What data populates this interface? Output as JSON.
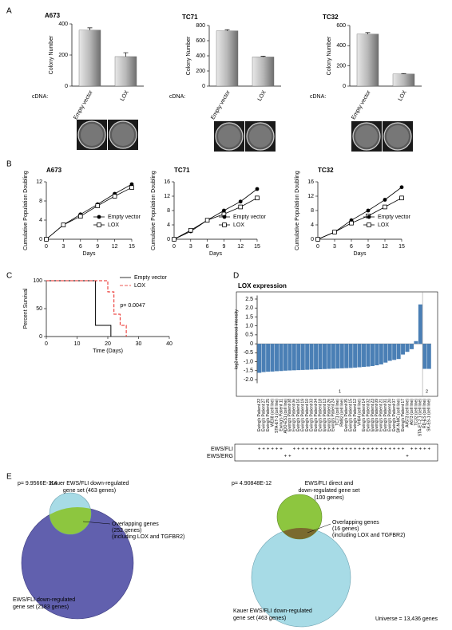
{
  "panel_labels": [
    "A",
    "B",
    "C",
    "D",
    "E"
  ],
  "chart_data": [
    {
      "type": "bar",
      "title": "A673",
      "categories": [
        "Empty vector",
        "LOX"
      ],
      "values": [
        360,
        190
      ],
      "errors": [
        15,
        25
      ],
      "ylabel": "Colony Number",
      "xlabel": "cDNA:",
      "ylim": [
        0,
        400
      ],
      "yticks": [
        0,
        200,
        400
      ],
      "color": "#a0a0a0"
    },
    {
      "type": "bar",
      "title": "TC71",
      "categories": [
        "Empty vector",
        "LOX"
      ],
      "values": [
        730,
        385
      ],
      "errors": [
        15,
        10
      ],
      "ylabel": "Colony Number",
      "xlabel": "cDNA:",
      "ylim": [
        0,
        800
      ],
      "yticks": [
        0,
        200,
        400,
        600,
        800
      ],
      "color": "#a0a0a0"
    },
    {
      "type": "bar",
      "title": "TC32",
      "categories": [
        "Empty vector",
        "LOX"
      ],
      "values": [
        515,
        120
      ],
      "errors": [
        15,
        5
      ],
      "ylabel": "Colony Number",
      "xlabel": "cDNA:",
      "ylim": [
        0,
        600
      ],
      "yticks": [
        0,
        200,
        400,
        600
      ],
      "color": "#a0a0a0"
    },
    {
      "type": "line",
      "title": "A673",
      "x": [
        0,
        3,
        6,
        9,
        12,
        15
      ],
      "series": [
        {
          "name": "Empty vector",
          "color": "#000000",
          "marker": "circle",
          "values": [
            0,
            3,
            5.2,
            7.3,
            9.5,
            11.5
          ]
        },
        {
          "name": "LOX",
          "color": "#000000",
          "marker": "square",
          "values": [
            0,
            3,
            4.8,
            7,
            9,
            10.8
          ]
        }
      ],
      "xlabel": "Days",
      "ylabel": "Cumulative Population Doubling",
      "xlim": [
        0,
        15
      ],
      "xticks": [
        0,
        3,
        6,
        9,
        12,
        15
      ],
      "ylim": [
        0,
        12
      ],
      "yticks": [
        0,
        4,
        8,
        12
      ],
      "legend": "lower right"
    },
    {
      "type": "line",
      "title": "TC71",
      "x": [
        0,
        3,
        6,
        9,
        12,
        15
      ],
      "series": [
        {
          "name": "Empty vector",
          "color": "#000000",
          "marker": "circle",
          "values": [
            0,
            2.2,
            5.3,
            8,
            10.5,
            14
          ]
        },
        {
          "name": "LOX",
          "color": "#000000",
          "marker": "square",
          "values": [
            0,
            2.5,
            5.3,
            7,
            9,
            11.5
          ]
        }
      ],
      "xlabel": "Days",
      "ylabel": "Cumulative Population Doubling",
      "xlim": [
        0,
        15
      ],
      "xticks": [
        0,
        3,
        6,
        9,
        12,
        15
      ],
      "ylim": [
        0,
        16
      ],
      "yticks": [
        0,
        4,
        8,
        12,
        16
      ],
      "legend": "lower right"
    },
    {
      "type": "line",
      "title": "TC32",
      "x": [
        0,
        3,
        6,
        9,
        12,
        15
      ],
      "series": [
        {
          "name": "Empty vector",
          "color": "#000000",
          "marker": "circle",
          "values": [
            0,
            2,
            5.3,
            8,
            11,
            14.5
          ]
        },
        {
          "name": "LOX",
          "color": "#000000",
          "marker": "square",
          "values": [
            0,
            2,
            4.5,
            6.5,
            9,
            11.5
          ]
        }
      ],
      "xlabel": "Days",
      "ylabel": "Cumulative Population Doubling",
      "xlim": [
        0,
        15
      ],
      "xticks": [
        0,
        3,
        6,
        9,
        12,
        15
      ],
      "ylim": [
        0,
        16
      ],
      "yticks": [
        0,
        4,
        8,
        12,
        16
      ],
      "legend": "lower right"
    },
    {
      "type": "line",
      "step": true,
      "series": [
        {
          "name": "Empty vector",
          "color": "#000000",
          "dash": false,
          "x": [
            0,
            16,
            16,
            21,
            21
          ],
          "values": [
            100,
            100,
            20,
            20,
            0
          ]
        },
        {
          "name": "LOX",
          "color": "#e8231f",
          "dash": true,
          "x": [
            0,
            20,
            20,
            22,
            22,
            24,
            24,
            26,
            26
          ],
          "values": [
            100,
            100,
            80,
            80,
            40,
            40,
            20,
            20,
            0
          ]
        }
      ],
      "annotation": "p= 0.0047",
      "xlabel": "Time (Days)",
      "ylabel": "Percent Survival",
      "xlim": [
        0,
        40
      ],
      "xticks": [
        0,
        10,
        20,
        30,
        40
      ],
      "ylim": [
        0,
        100
      ],
      "yticks": [
        0,
        50,
        100
      ],
      "legend": "upper right"
    },
    {
      "type": "bar",
      "title": "LOX expression",
      "ylabel": "log2 median-centered intensity",
      "color": "#4a7fb5",
      "categories": [
        "Ewing's Patient 22",
        "Ewing's Patient 27",
        "Ewing's Patient 25",
        "WE68 (cell line)",
        "STA-ET-1 (cell line)",
        "Ewing's Patient 11",
        "ADO-ES1 (cell line)",
        "Ewing's Patient 08",
        "Ewing's Patient 06",
        "Ewing's Patient 16",
        "Ewing's Patient 19",
        "Ewing's Patient 10",
        "Ewing's Patient 03",
        "Ewing's Patient 04",
        "Ewing's Patient 18",
        "Ewing's Patient 13",
        "Ewing's Patient 26",
        "Ewing's Patient 24",
        "TC71 (cell line)",
        "RM82 (cell line)",
        "Ewing's Patient 05",
        "Ewing's Patient 15",
        "Ewing's Patient 12",
        "VH64 (cell line)",
        "Ewing's Patient 14",
        "Ewing's Patient 02",
        "Ewing's Patient 23",
        "Ewing's Patient 09",
        "Ewing's Patient 21",
        "Ewing's Patient 01",
        "Ewing's Patient 20",
        "Ewing's Patient 07",
        "SK-N-MC (cell line)",
        "Ewing's Patient 17",
        "A4573 (cell line)",
        "A673 (cell line)",
        "TC32 (cell line)",
        "STA-ET-2.1 (cell line)",
        "RD-ES (cell line)",
        "SK-ES-1 (cell line)"
      ],
      "values": [
        -1.62,
        -1.58,
        -1.56,
        -1.55,
        -1.53,
        -1.52,
        -1.5,
        -1.49,
        -1.48,
        -1.47,
        -1.46,
        -1.45,
        -1.44,
        -1.43,
        -1.42,
        -1.41,
        -1.4,
        -1.39,
        -1.38,
        -1.37,
        -1.36,
        -1.35,
        -1.33,
        -1.31,
        -1.29,
        -1.27,
        -1.24,
        -1.2,
        -1.15,
        -1.05,
        -0.95,
        -0.9,
        -0.85,
        -0.6,
        -0.45,
        -0.3,
        0.15,
        2.2,
        -1.4,
        -1.4
      ],
      "groups": [
        {
          "label": "1",
          "count": 38
        },
        {
          "label": "2",
          "count": 2
        }
      ],
      "fusions": [
        {
          "name": "EWS/FLI",
          "marks": [
            "+",
            "+",
            "+",
            "+",
            "+",
            "+",
            null,
            null,
            "+",
            "+",
            "+",
            "+",
            "+",
            "+",
            "+",
            "+",
            "+",
            "+",
            "+",
            "+",
            "+",
            "+",
            "+",
            "+",
            "+",
            "+",
            "+",
            "+",
            "+",
            "+",
            "+",
            "+",
            "+",
            "+",
            null,
            "+",
            "+",
            "+",
            "+",
            "+"
          ]
        },
        {
          "name": "EWS/ERG",
          "marks": [
            null,
            null,
            null,
            null,
            null,
            null,
            "+",
            "+",
            null,
            null,
            null,
            null,
            null,
            null,
            null,
            null,
            null,
            null,
            null,
            null,
            null,
            null,
            null,
            null,
            null,
            null,
            null,
            null,
            null,
            null,
            null,
            null,
            null,
            null,
            "+",
            null,
            null,
            null,
            null,
            null
          ]
        }
      ],
      "ylim": [
        -2.2,
        2.7
      ],
      "yticks": [
        2.5,
        {
          "value": 2,
          "label": "2.0"
        },
        1.5,
        {
          "value": 1,
          "label": "1.0"
        },
        0.5,
        0,
        -0.5,
        {
          "value": -1,
          "label": "-1.0"
        },
        -1.5,
        {
          "value": -2,
          "label": "-2.0"
        }
      ]
    }
  ],
  "venn": [
    {
      "p": "p= 9.9566E-114",
      "top_set": [
        "Kauer EWS/FLI down-regulated",
        "gene set (463 genes)"
      ],
      "overlap": [
        "Overlapping genes",
        "(252 genes)",
        "(including LOX and TGFBR2)"
      ],
      "bottom_set": [
        "EWS/FLI down-regulated",
        "gene set (2183 genes)"
      ]
    },
    {
      "p": "p= 4.90848E-12",
      "top_set": [
        "EWS/FLI direct and",
        "down-regulated gene set",
        "(100 genes)"
      ],
      "overlap": [
        "Overlapping genes",
        "(16 genes)",
        "(including LOX and TGFBR2)"
      ],
      "bottom_set": [
        "Kauer EWS/FLI down-regulated",
        "gene set (463 genes)"
      ],
      "universe": "Universe = 13,436 genes"
    }
  ]
}
